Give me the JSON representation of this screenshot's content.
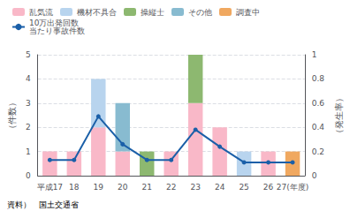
{
  "chart_data": {
    "type": "bar",
    "stacked": true,
    "categories": [
      "平成17",
      "18",
      "19",
      "20",
      "21",
      "22",
      "23",
      "24",
      "25",
      "26",
      "27(年度)"
    ],
    "series": [
      {
        "name": "乱気流",
        "color": "#f9b8c8",
        "values": [
          1,
          1,
          2,
          1,
          0,
          1,
          3,
          2,
          0,
          1,
          0
        ]
      },
      {
        "name": "機材不具合",
        "color": "#b8d4ee",
        "values": [
          0,
          0,
          2,
          0,
          0,
          0,
          0,
          0,
          1,
          0,
          0
        ]
      },
      {
        "name": "操縦士",
        "color": "#8db870",
        "values": [
          0,
          0,
          0,
          0,
          1,
          0,
          2,
          0,
          0,
          0,
          0
        ]
      },
      {
        "name": "その他",
        "color": "#88bbd0",
        "values": [
          0,
          0,
          0,
          2,
          0,
          0,
          0,
          0,
          0,
          0,
          0
        ]
      },
      {
        "name": "調査中",
        "color": "#f0a860",
        "values": [
          0,
          0,
          0,
          0,
          0,
          0,
          0,
          0,
          0,
          0,
          1
        ]
      },
      {
        "name": "10万出発回数\n当たり事故件数",
        "type": "line",
        "axis": "y2",
        "color": "#1a5fa8",
        "marker": "circle",
        "values": [
          0.13,
          0.13,
          0.49,
          0.26,
          0.13,
          0.13,
          0.38,
          0.24,
          0.11,
          0.11,
          0.11
        ]
      }
    ],
    "ylim": [
      0,
      5
    ],
    "yticks": [
      0,
      1,
      2,
      3,
      4,
      5
    ],
    "y2lim": [
      0,
      1
    ],
    "y2ticks": [
      0,
      0.2,
      0.4,
      0.6,
      0.8,
      1
    ],
    "ylabel": "（件数）",
    "y2label": "（発生率）",
    "annotation": "資料）　国土交通省",
    "grid": true,
    "legend": "upper left"
  }
}
